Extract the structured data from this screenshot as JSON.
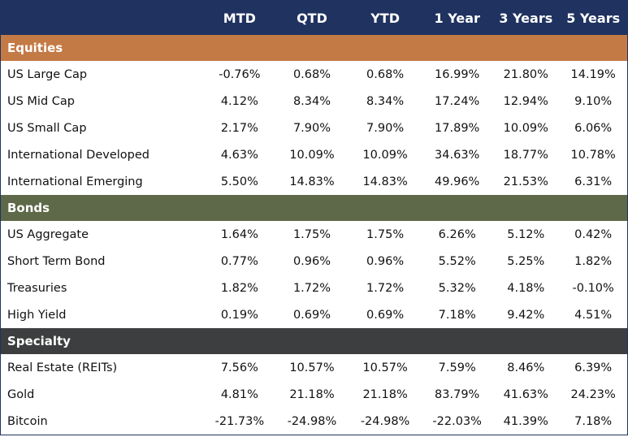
{
  "table": {
    "columns": [
      "MTD",
      "QTD",
      "YTD",
      "1 Year",
      "3 Years",
      "5 Years"
    ],
    "sections": [
      {
        "name": "Equities",
        "color": "#c47a45",
        "rows": [
          {
            "label": "US Large Cap",
            "values": [
              "-0.76%",
              "0.68%",
              "0.68%",
              "16.99%",
              "21.80%",
              "14.19%"
            ]
          },
          {
            "label": "US Mid Cap",
            "values": [
              "4.12%",
              "8.34%",
              "8.34%",
              "17.24%",
              "12.94%",
              "9.10%"
            ]
          },
          {
            "label": "US Small Cap",
            "values": [
              "2.17%",
              "7.90%",
              "7.90%",
              "17.89%",
              "10.09%",
              "6.06%"
            ]
          },
          {
            "label": "International Developed",
            "values": [
              "4.63%",
              "10.09%",
              "10.09%",
              "34.63%",
              "18.77%",
              "10.78%"
            ]
          },
          {
            "label": "International Emerging",
            "values": [
              "5.50%",
              "14.83%",
              "14.83%",
              "49.96%",
              "21.53%",
              "6.31%"
            ]
          }
        ]
      },
      {
        "name": "Bonds",
        "color": "#5d6948",
        "rows": [
          {
            "label": "US Aggregate",
            "values": [
              "1.64%",
              "1.75%",
              "1.75%",
              "6.26%",
              "5.12%",
              "0.42%"
            ]
          },
          {
            "label": "Short Term Bond",
            "values": [
              "0.77%",
              "0.96%",
              "0.96%",
              "5.52%",
              "5.25%",
              "1.82%"
            ]
          },
          {
            "label": "Treasuries",
            "values": [
              "1.82%",
              "1.72%",
              "1.72%",
              "5.32%",
              "4.18%",
              "-0.10%"
            ]
          },
          {
            "label": "High Yield",
            "values": [
              "0.19%",
              "0.69%",
              "0.69%",
              "7.18%",
              "9.42%",
              "4.51%"
            ]
          }
        ]
      },
      {
        "name": "Specialty",
        "color": "#3d3e3f",
        "rows": [
          {
            "label": "Real Estate (REITs)",
            "values": [
              "7.56%",
              "10.57%",
              "10.57%",
              "7.59%",
              "8.46%",
              "6.39%"
            ]
          },
          {
            "label": "Gold",
            "values": [
              "4.81%",
              "21.18%",
              "21.18%",
              "83.79%",
              "41.63%",
              "24.23%"
            ]
          },
          {
            "label": "Bitcoin",
            "values": [
              "-21.73%",
              "-24.98%",
              "-24.98%",
              "-22.03%",
              "41.39%",
              "7.18%"
            ]
          }
        ]
      }
    ]
  }
}
